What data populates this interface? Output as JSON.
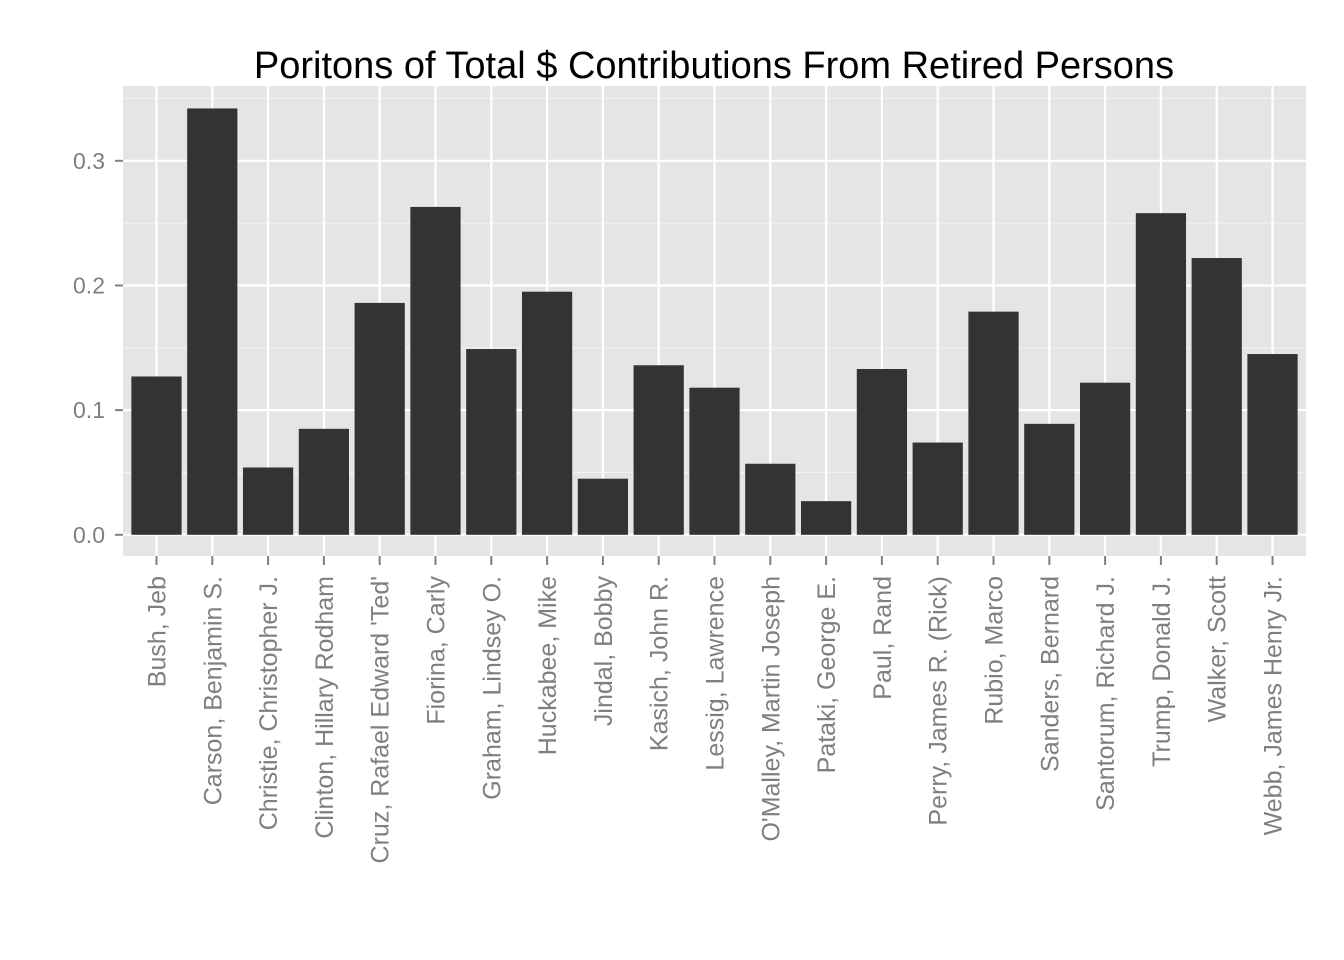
{
  "chart_data": {
    "type": "bar",
    "title": "Poritons of Total $ Contributions From Retired Persons",
    "xlabel": "",
    "ylabel": "",
    "categories": [
      "Bush, Jeb",
      "Carson, Benjamin S.",
      "Christie, Christopher J.",
      "Clinton, Hillary Rodham",
      "Cruz, Rafael Edward 'Ted'",
      "Fiorina, Carly",
      "Graham, Lindsey O.",
      "Huckabee, Mike",
      "Jindal, Bobby",
      "Kasich, John R.",
      "Lessig, Lawrence",
      "O'Malley, Martin Joseph",
      "Pataki, George E.",
      "Paul, Rand",
      "Perry, James R. (Rick)",
      "Rubio, Marco",
      "Sanders, Bernard",
      "Santorum, Richard J.",
      "Trump, Donald J.",
      "Walker, Scott",
      "Webb, James Henry Jr."
    ],
    "values": [
      0.127,
      0.342,
      0.054,
      0.085,
      0.186,
      0.263,
      0.149,
      0.195,
      0.045,
      0.136,
      0.118,
      0.057,
      0.027,
      0.133,
      0.074,
      0.179,
      0.089,
      0.122,
      0.258,
      0.222,
      0.145
    ],
    "ylim": [
      -0.017,
      0.36
    ],
    "yticks": [
      0.0,
      0.1,
      0.2,
      0.3
    ],
    "ytick_labels": [
      "0.0",
      "0.1",
      "0.2",
      "0.3"
    ],
    "grid": true,
    "legend": "none",
    "colors": {
      "panel_background": "#e5e5e5",
      "grid_major": "#ffffff",
      "grid_minor": "#f2f2f2",
      "bar_fill": "#333333",
      "tick_label": "#7f7f7f",
      "tick_mark": "#7f7f7f",
      "title": "#000000"
    }
  }
}
